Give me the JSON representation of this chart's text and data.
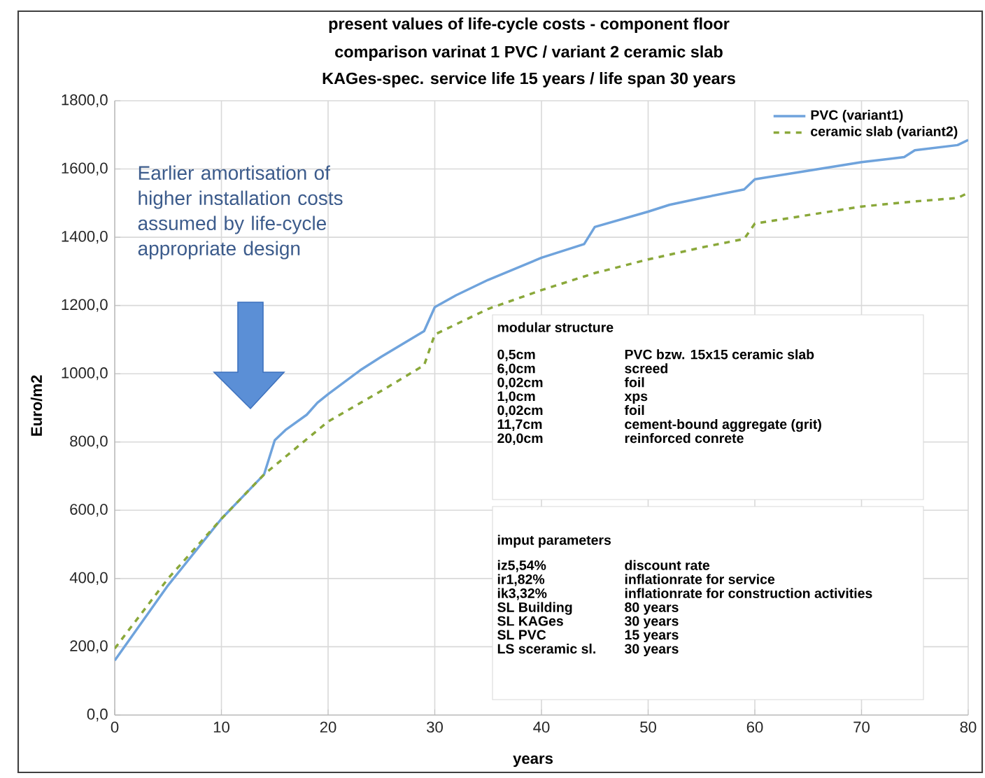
{
  "chart_data": {
    "type": "line",
    "title": "present values of life-cycle costs - component floor",
    "subtitle": "comparison varinat 1 PVC / variant 2 ceramic slab",
    "xlabel": "years",
    "ylabel": "Euro/m2",
    "xlim": [
      0,
      80
    ],
    "ylim": [
      0,
      1800
    ],
    "xticks": [
      0,
      10,
      20,
      30,
      40,
      50,
      60,
      70,
      80
    ],
    "yticks": [
      {
        "value": 0,
        "label": "0,0"
      },
      {
        "value": 200,
        "label": "200,0"
      },
      {
        "value": 400,
        "label": "400,0"
      },
      {
        "value": 600,
        "label": "600,0"
      },
      {
        "value": 800,
        "label": "800,0"
      },
      {
        "value": 1000,
        "label": "1000,0"
      },
      {
        "value": 1200,
        "label": "1200,0"
      },
      {
        "value": 1400,
        "label": "1400,0"
      },
      {
        "value": 1600,
        "label": "1600,0"
      },
      {
        "value": 1800,
        "label": "1800,0"
      }
    ],
    "grid": true,
    "legend": "top right",
    "marker": "none",
    "series": [
      {
        "name": "PVC (variant1)",
        "color": "#6fa3dc",
        "line_style": "solid",
        "x": [
          0,
          5,
          10,
          14,
          15,
          16,
          18,
          19,
          20,
          23,
          25,
          29,
          30,
          32,
          35,
          40,
          44,
          45,
          50,
          52,
          55,
          59,
          60,
          65,
          70,
          74,
          75,
          79,
          80
        ],
        "values": [
          160,
          380,
          575,
          705,
          805,
          835,
          880,
          915,
          940,
          1010,
          1050,
          1125,
          1195,
          1230,
          1275,
          1340,
          1380,
          1430,
          1475,
          1495,
          1515,
          1540,
          1570,
          1595,
          1620,
          1635,
          1655,
          1670,
          1685
        ]
      },
      {
        "name": "ceramic slab (variant2)",
        "color": "#8aa83a",
        "line_style": "dashed",
        "x": [
          0,
          5,
          10,
          14,
          20,
          25,
          29,
          30,
          35,
          40,
          45,
          50,
          55,
          59,
          60,
          65,
          70,
          75,
          79,
          80
        ],
        "values": [
          195,
          400,
          575,
          705,
          860,
          950,
          1025,
          1115,
          1190,
          1245,
          1295,
          1335,
          1370,
          1395,
          1440,
          1465,
          1490,
          1505,
          1515,
          1530
        ]
      }
    ],
    "annotations": [
      "KAGes-spec. service life  15 years / life span 30 years",
      "Earlier amortisation of higher installation costs assumed by life-cycle appropriate design",
      "modular structure",
      "0,5cm",
      "PVC bzw. 15x15 ceramic slab",
      "6,0cm",
      "screed",
      "0,02cm",
      "foil",
      "1,0cm",
      "xps",
      "0,02cm",
      "foil",
      "11,7cm",
      "cement-bound aggregate (grit)",
      "20,0cm",
      "reinforced conrete",
      "imput parameters",
      "iz5,54%",
      "discount rate",
      "ir1,82%",
      "inflationrate for service",
      "ik3,32%",
      "inflationrate for construction activities",
      "SL Building",
      "80 years",
      "SL KAGes",
      "30 years",
      "SL PVC",
      "15 years",
      "LS sceramic sl.",
      "30 years"
    ]
  }
}
